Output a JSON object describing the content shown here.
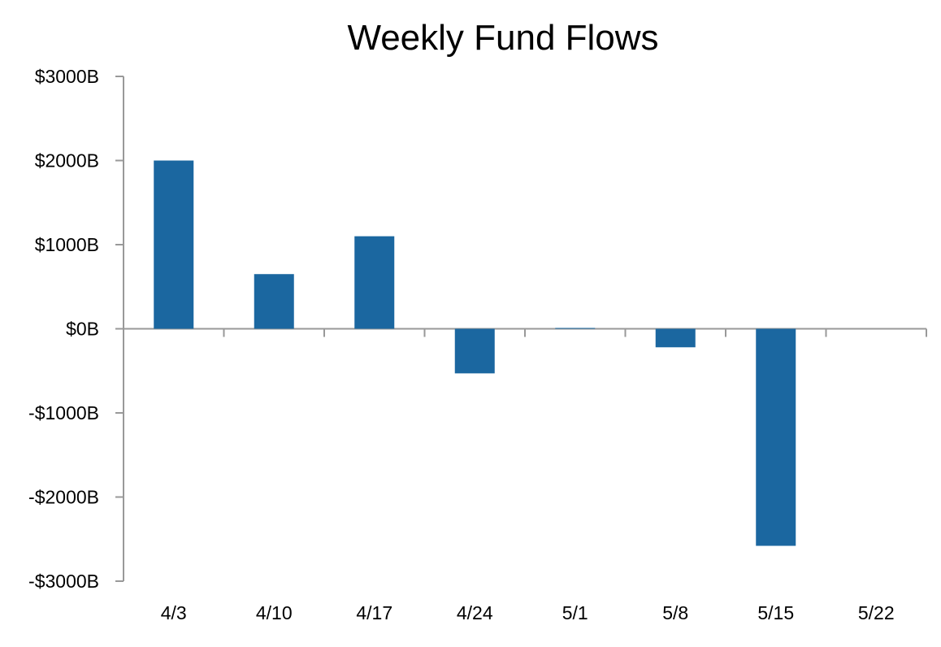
{
  "chart_data": {
    "type": "bar",
    "title": "Weekly Fund Flows",
    "xlabel": "",
    "ylabel": "",
    "categories": [
      "4/3",
      "4/10",
      "4/17",
      "4/24",
      "5/1",
      "5/8",
      "5/15",
      "5/22"
    ],
    "values": [
      2000,
      650,
      1100,
      -530,
      10,
      -220,
      -2580,
      0
    ],
    "unit": "billions USD",
    "ylim": [
      -3000,
      3000
    ],
    "yticks": [
      3000,
      2000,
      1000,
      0,
      -1000,
      -2000,
      -3000
    ],
    "ytick_labels": [
      "$3000B",
      "$2000B",
      "$1000B",
      "$0B",
      "-$1000B",
      "-$2000B",
      "-$3000B"
    ],
    "grid": false,
    "legend": "none",
    "colors": {
      "bar": "#1b67a0",
      "axis": "#999999",
      "text": "#000000"
    }
  }
}
